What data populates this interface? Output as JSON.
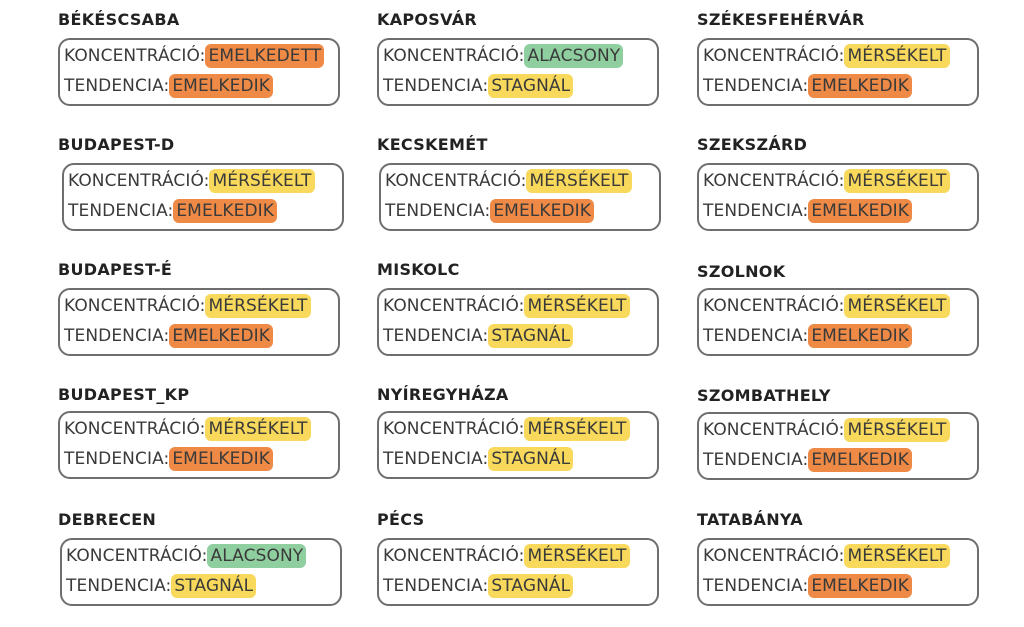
{
  "labels": {
    "concentration": "KONCENTRÁCIÓ:",
    "trend": "TENDENCIA:"
  },
  "colors": {
    "orange": "#ee8a45",
    "yellow": "#f8d95b",
    "green": "#8fcf9f",
    "border": "#6e6e6e"
  },
  "cards": [
    {
      "city": "BÉKÉSCSABA",
      "conc": "EMELKEDETT",
      "conc_color": "orange",
      "trend": "EMELKEDIK",
      "trend_color": "orange"
    },
    {
      "city": "KAPOSVÁR",
      "conc": "ALACSONY",
      "conc_color": "green",
      "trend": "STAGNÁL",
      "trend_color": "yellow"
    },
    {
      "city": "SZÉKESFEHÉRVÁR",
      "conc": "MÉRSÉKELT",
      "conc_color": "yellow",
      "trend": "EMELKEDIK",
      "trend_color": "orange"
    },
    {
      "city": "BUDAPEST-D",
      "conc": "MÉRSÉKELT",
      "conc_color": "yellow",
      "trend": "EMELKEDIK",
      "trend_color": "orange"
    },
    {
      "city": "KECSKEMÉT",
      "conc": "MÉRSÉKELT",
      "conc_color": "yellow",
      "trend": "EMELKEDIK",
      "trend_color": "orange"
    },
    {
      "city": "SZEKSZÁRD",
      "conc": "MÉRSÉKELT",
      "conc_color": "yellow",
      "trend": "EMELKEDIK",
      "trend_color": "orange"
    },
    {
      "city": "BUDAPEST-É",
      "conc": "MÉRSÉKELT",
      "conc_color": "yellow",
      "trend": "EMELKEDIK",
      "trend_color": "orange"
    },
    {
      "city": "MISKOLC",
      "conc": "MÉRSÉKELT",
      "conc_color": "yellow",
      "trend": "STAGNÁL",
      "trend_color": "yellow"
    },
    {
      "city": "SZOLNOK",
      "conc": "MÉRSÉKELT",
      "conc_color": "yellow",
      "trend": "EMELKEDIK",
      "trend_color": "orange"
    },
    {
      "city": "BUDAPEST_KP",
      "conc": "MÉRSÉKELT",
      "conc_color": "yellow",
      "trend": "EMELKEDIK",
      "trend_color": "orange"
    },
    {
      "city": "NYÍREGYHÁZA",
      "conc": "MÉRSÉKELT",
      "conc_color": "yellow",
      "trend": "STAGNÁL",
      "trend_color": "yellow"
    },
    {
      "city": "SZOMBATHELY",
      "conc": "MÉRSÉKELT",
      "conc_color": "yellow",
      "trend": "EMELKEDIK",
      "trend_color": "orange"
    },
    {
      "city": "DEBRECEN",
      "conc": "ALACSONY",
      "conc_color": "green",
      "trend": "STAGNÁL",
      "trend_color": "yellow"
    },
    {
      "city": "PÉCS",
      "conc": "MÉRSÉKELT",
      "conc_color": "yellow",
      "trend": "STAGNÁL",
      "trend_color": "yellow"
    },
    {
      "city": "TATABÁNYA",
      "conc": "MÉRSÉKELT",
      "conc_color": "yellow",
      "trend": "EMELKEDIK",
      "trend_color": "orange"
    }
  ]
}
